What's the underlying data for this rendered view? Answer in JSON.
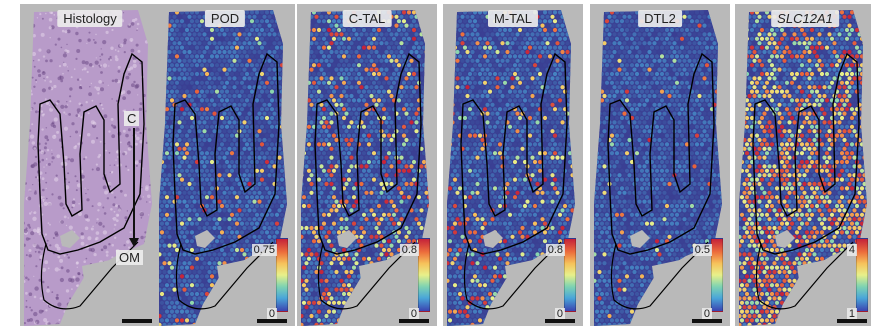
{
  "panels": [
    {
      "id": "histology",
      "title": "Histology",
      "italic": false,
      "kind": "histology",
      "cbar_max": null,
      "cbar_min": null,
      "density": 0,
      "seed": 1
    },
    {
      "id": "pod",
      "title": "POD",
      "italic": false,
      "kind": "spots",
      "cbar_max": "0.75",
      "cbar_min": "0",
      "density": 0.07,
      "seed": 11
    },
    {
      "id": "c-tal",
      "title": "C-TAL",
      "italic": false,
      "kind": "spots",
      "cbar_max": "0.8",
      "cbar_min": "0",
      "density": 0.3,
      "seed": 23
    },
    {
      "id": "m-tal",
      "title": "M-TAL",
      "italic": false,
      "kind": "spots",
      "cbar_max": "0.8",
      "cbar_min": "0",
      "density": 0.18,
      "seed": 37
    },
    {
      "id": "dtl2",
      "title": "DTL2",
      "italic": false,
      "kind": "spots",
      "cbar_max": "0.5",
      "cbar_min": "0",
      "density": 0.05,
      "seed": 51
    },
    {
      "id": "slc12a1",
      "title": "SLC12A1",
      "italic": true,
      "kind": "spots",
      "cbar_max": "4",
      "cbar_min": "1",
      "density": 0.6,
      "seed": 67
    }
  ],
  "annotations": {
    "cortex_label": "C",
    "outer_medulla_label": "OM"
  },
  "colors": {
    "spot_base": "#3a3f93",
    "histology_tissue": "#b89bc9",
    "outline": "#000000"
  }
}
